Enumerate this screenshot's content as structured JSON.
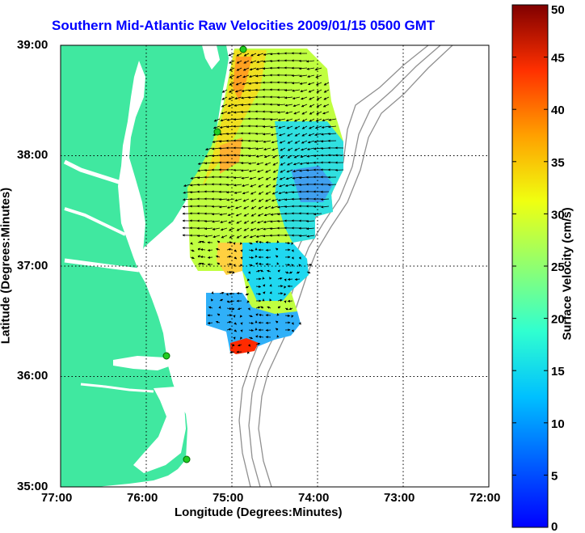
{
  "title": "Southern Mid-Atlantic Raw Velocities 2009/01/15 0500 GMT",
  "xlabel": "Longitude (Degrees:Minutes)",
  "ylabel": "Latitude (Degrees:Minutes)",
  "x_ticks": [
    "77:00",
    "76:00",
    "75:00",
    "74:00",
    "73:00",
    "72:00"
  ],
  "y_ticks": [
    "39:00",
    "38:00",
    "37:00",
    "36:00",
    "35:00"
  ],
  "colorbar": {
    "label": "Surface Velocity (cm/s)",
    "ticks": [
      "0",
      "5",
      "10",
      "15",
      "20",
      "25",
      "30",
      "35",
      "40",
      "45",
      "50"
    ],
    "min": 0,
    "max": 50,
    "colormap": "jet"
  },
  "colors": {
    "land": "#40e8a0",
    "title": "#0000ff",
    "bathymetry": "#909090",
    "station": "#22cc22"
  },
  "map_extent": {
    "lon_west": -77,
    "lon_east": -72,
    "lat_south": 35,
    "lat_north": 39
  },
  "grid": "dotted"
}
